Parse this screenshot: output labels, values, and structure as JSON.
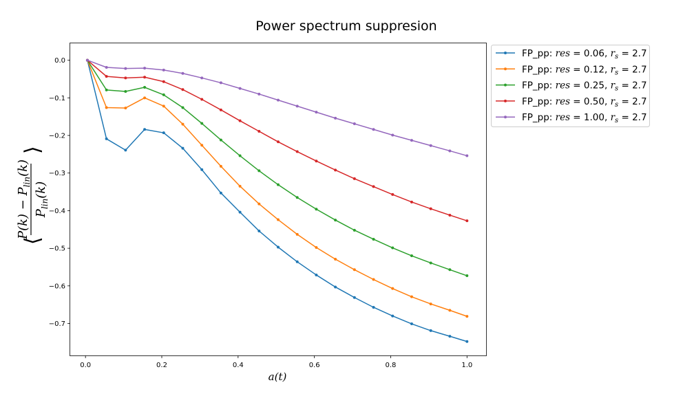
{
  "chart_data": {
    "type": "line",
    "title": "Power spectrum suppresion",
    "xlabel": "a(t)",
    "ylabel": "⟨(P(k) − P_lin(k)) / P_lin(k)⟩",
    "xlim": [
      -0.04,
      1.05
    ],
    "ylim": [
      -0.785,
      0.045
    ],
    "xticks": [
      0.0,
      0.2,
      0.4,
      0.6,
      0.8,
      1.0
    ],
    "xtick_labels": [
      "0.0",
      "0.2",
      "0.4",
      "0.6",
      "0.8",
      "1.0"
    ],
    "yticks": [
      0.0,
      -0.1,
      -0.2,
      -0.3,
      -0.4,
      -0.5,
      -0.6,
      -0.7
    ],
    "ytick_labels": [
      "0.0",
      "−0.1",
      "−0.2",
      "−0.3",
      "−0.4",
      "−0.5",
      "−0.6",
      "−0.7"
    ],
    "grid": false,
    "legend_position": "outside-top-right",
    "x": [
      0.005,
      0.055,
      0.105,
      0.155,
      0.205,
      0.255,
      0.305,
      0.355,
      0.405,
      0.455,
      0.505,
      0.555,
      0.605,
      0.655,
      0.705,
      0.755,
      0.805,
      0.855,
      0.905,
      0.955,
      1.0
    ],
    "series": [
      {
        "name": "FP_pp: res = 0.06, r_s = 2.7",
        "color": "#1f77b4",
        "values": [
          0.0,
          -0.209,
          -0.239,
          -0.184,
          -0.193,
          -0.234,
          -0.291,
          -0.353,
          -0.404,
          -0.454,
          -0.497,
          -0.536,
          -0.571,
          -0.603,
          -0.631,
          -0.657,
          -0.68,
          -0.701,
          -0.719,
          -0.734,
          -0.748
        ]
      },
      {
        "name": "FP_pp: res = 0.12, r_s = 2.7",
        "color": "#ff7f0e",
        "values": [
          0.0,
          -0.126,
          -0.127,
          -0.1,
          -0.122,
          -0.17,
          -0.226,
          -0.282,
          -0.335,
          -0.382,
          -0.424,
          -0.463,
          -0.498,
          -0.529,
          -0.557,
          -0.583,
          -0.607,
          -0.629,
          -0.648,
          -0.665,
          -0.681
        ]
      },
      {
        "name": "FP_pp: res = 0.25, r_s = 2.7",
        "color": "#2ca02c",
        "values": [
          0.0,
          -0.079,
          -0.083,
          -0.072,
          -0.092,
          -0.126,
          -0.168,
          -0.212,
          -0.254,
          -0.294,
          -0.331,
          -0.365,
          -0.396,
          -0.425,
          -0.452,
          -0.476,
          -0.499,
          -0.52,
          -0.539,
          -0.557,
          -0.573
        ]
      },
      {
        "name": "FP_pp: res = 0.50, r_s = 2.7",
        "color": "#d62728",
        "values": [
          0.0,
          -0.043,
          -0.047,
          -0.045,
          -0.057,
          -0.078,
          -0.104,
          -0.132,
          -0.161,
          -0.189,
          -0.217,
          -0.243,
          -0.268,
          -0.292,
          -0.315,
          -0.336,
          -0.357,
          -0.377,
          -0.395,
          -0.412,
          -0.427
        ]
      },
      {
        "name": "FP_pp: res = 1.00, r_s = 2.7",
        "color": "#9467bd",
        "values": [
          0.0,
          -0.019,
          -0.022,
          -0.021,
          -0.026,
          -0.035,
          -0.047,
          -0.06,
          -0.075,
          -0.09,
          -0.106,
          -0.122,
          -0.138,
          -0.154,
          -0.169,
          -0.184,
          -0.199,
          -0.213,
          -0.227,
          -0.241,
          -0.254
        ]
      }
    ]
  },
  "legend": {
    "entries": [
      {
        "prefix": "FP_pp: ",
        "res_label": "res",
        "res_value": "0.06",
        "rs_label": "r",
        "rs_sub": "s",
        "rs_value": "2.7"
      },
      {
        "prefix": "FP_pp: ",
        "res_label": "res",
        "res_value": "0.12",
        "rs_label": "r",
        "rs_sub": "s",
        "rs_value": "2.7"
      },
      {
        "prefix": "FP_pp: ",
        "res_label": "res",
        "res_value": "0.25",
        "rs_label": "r",
        "rs_sub": "s",
        "rs_value": "2.7"
      },
      {
        "prefix": "FP_pp: ",
        "res_label": "res",
        "res_value": "0.50",
        "rs_label": "r",
        "rs_sub": "s",
        "rs_value": "2.7"
      },
      {
        "prefix": "FP_pp: ",
        "res_label": "res",
        "res_value": "1.00",
        "rs_label": "r",
        "rs_sub": "s",
        "rs_value": "2.7"
      }
    ]
  },
  "ylabel_parts": {
    "numerator": "P(k) − P",
    "num_sub": "lin",
    "num_tail": "(k)",
    "denominator": "P",
    "den_sub": "lin",
    "den_tail": "(k)"
  }
}
